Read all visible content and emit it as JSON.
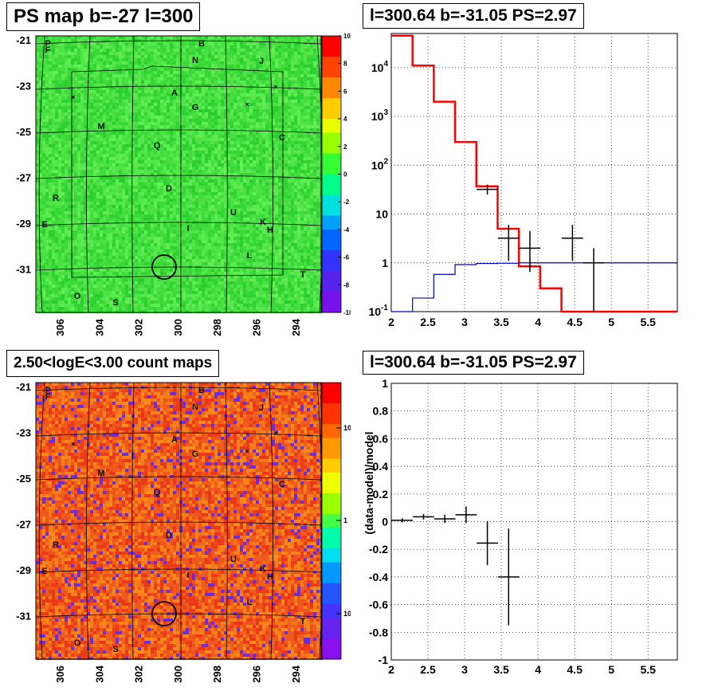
{
  "panels": {
    "top_left_title": "PS map b=-27 l=300",
    "top_right_title": "l=300.64 b=-31.05 PS=2.97",
    "bottom_left_title": "2.50<logE<3.00 count maps",
    "bottom_right_title": "l=300.64 b=-31.05 PS=2.97"
  },
  "sky_map_labels": {
    "y_ticks": [
      "-21",
      "-23",
      "-25",
      "-27",
      "-29",
      "-31"
    ],
    "x_ticks": [
      "306",
      "304",
      "302",
      "300",
      "298",
      "296",
      "294"
    ],
    "sources": [
      "P",
      "F",
      "B",
      "N",
      "J",
      "A",
      "G",
      "M",
      "C",
      "Q",
      "D",
      "R",
      "U",
      "K",
      "H",
      "E",
      "I",
      "L",
      "T",
      "O",
      "S"
    ]
  },
  "colors": {
    "red_line": "#ff0000",
    "blue_line": "#0000cc",
    "map_green": "#3cdc3c",
    "map_orange": "#ee5a1e"
  },
  "chart_data": [
    {
      "type": "heatmap",
      "title": "PS map b=-27 l=300",
      "ytick_labels": [
        "-21",
        "-23",
        "-25",
        "-27",
        "-29",
        "-31"
      ],
      "xtick_labels": [
        "306",
        "304",
        "302",
        "300",
        "298",
        "296",
        "294"
      ],
      "colorbar": {
        "min": -10,
        "max": 10,
        "ticks": [
          "10",
          "8",
          "6",
          "4",
          "2",
          "0",
          "-2",
          "-4",
          "-6",
          "-8",
          "-10"
        ]
      },
      "marked_source": {
        "l": 300.64,
        "b": -31.05
      }
    },
    {
      "type": "line",
      "title": "l=300.64 b=-31.05 PS=2.97",
      "xlim": [
        2,
        5.9
      ],
      "ylim": [
        0.1,
        50000
      ],
      "yscale": "log",
      "grid": true,
      "xtick_labels": [
        "2",
        "2.5",
        "3",
        "3.5",
        "4",
        "4.5",
        "5",
        "5.5"
      ],
      "ytick_labels": [
        "10^-1",
        "1",
        "10",
        "10^2",
        "10^3",
        "10^4"
      ],
      "bin_edges": [
        2.0,
        2.29,
        2.58,
        2.87,
        3.16,
        3.45,
        3.74,
        4.03,
        4.32,
        4.61,
        4.9,
        5.2,
        5.5,
        5.9
      ],
      "series": [
        {
          "color": "#ff0000",
          "kind": "step",
          "values": [
            45000,
            11000,
            2000,
            300,
            37,
            5,
            0.85,
            0.3,
            0.1,
            0.1,
            0.1,
            0.1,
            0.1
          ]
        },
        {
          "color": "#0000cc",
          "kind": "step",
          "values": [
            0.1,
            0.19,
            0.58,
            0.92,
            0.97,
            0.98,
            1,
            1,
            1,
            1,
            1,
            1,
            1
          ]
        },
        {
          "color": "#000000",
          "kind": "errorbar",
          "points": [
            {
              "x": 3.31,
              "y": 32,
              "ylo": 25,
              "yhi": 40
            },
            {
              "x": 3.6,
              "y": 3.2,
              "ylo": 1.1,
              "yhi": 6
            },
            {
              "x": 3.89,
              "y": 2,
              "ylo": 0.65,
              "yhi": 4.5
            },
            {
              "x": 4.47,
              "y": 3.2,
              "ylo": 1.1,
              "yhi": 6
            },
            {
              "x": 4.76,
              "y": 1,
              "ylo": 0.1,
              "yhi": 2
            }
          ]
        }
      ]
    },
    {
      "type": "heatmap",
      "title": "2.50<logE<3.00 count maps",
      "ytick_labels": [
        "-21",
        "-23",
        "-25",
        "-27",
        "-29",
        "-31"
      ],
      "xtick_labels": [
        "306",
        "304",
        "302",
        "300",
        "298",
        "296",
        "294"
      ],
      "colorbar": {
        "scale": "log",
        "ticks": [
          "10",
          "1",
          "10^-1"
        ]
      },
      "marked_source": {
        "l": 300.64,
        "b": -31.05
      }
    },
    {
      "type": "scatter",
      "title": "l=300.64 b=-31.05 PS=2.97",
      "ylabel": "(data-model)/model",
      "xlim": [
        2,
        5.9
      ],
      "ylim": [
        -1,
        1
      ],
      "grid": true,
      "xtick_labels": [
        "2",
        "2.5",
        "3",
        "3.5",
        "4",
        "4.5",
        "5",
        "5.5"
      ],
      "ytick_labels": [
        "1",
        "0.8",
        "0.6",
        "0.4",
        "0.2",
        "0",
        "-0.2",
        "-0.4",
        "-0.6",
        "-0.8",
        "-1"
      ],
      "points": [
        {
          "x": 2.15,
          "y": 0.01,
          "xerr": 0.145,
          "yerr": 0.015
        },
        {
          "x": 2.44,
          "y": 0.035,
          "xerr": 0.145,
          "yerr": 0.02
        },
        {
          "x": 2.73,
          "y": 0.02,
          "xerr": 0.145,
          "yerr": 0.03
        },
        {
          "x": 3.02,
          "y": 0.05,
          "xerr": 0.145,
          "yerr": 0.06
        },
        {
          "x": 3.31,
          "y": -0.155,
          "xerr": 0.145,
          "yerr": 0.16
        },
        {
          "x": 3.6,
          "y": -0.4,
          "xerr": 0.145,
          "yerr": 0.35
        }
      ]
    }
  ]
}
